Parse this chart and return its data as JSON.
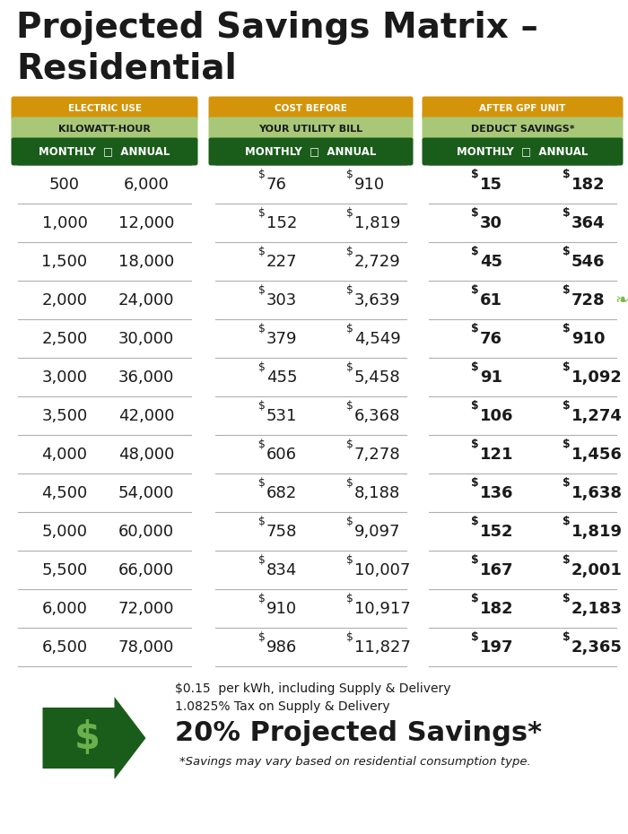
{
  "title_line1": "Projected Savings Matrix –",
  "title_line2": "Residential",
  "bg_color": "#ffffff",
  "dark_green": "#1a5c1a",
  "light_green_header": "#a8c878",
  "orange_header": "#d4940a",
  "text_dark": "#1a1a1a",
  "header_groups": [
    {
      "orange_label": "ELECTRIC USE",
      "light_label": "KILOWATT-HOUR",
      "dark_label": "MONTHLY  □  ANNUAL"
    },
    {
      "orange_label": "COST BEFORE",
      "light_label": "YOUR UTILITY BILL",
      "dark_label": "MONTHLY  □  ANNUAL"
    },
    {
      "orange_label": "AFTER GPF UNIT",
      "light_label": "DEDUCT SAVINGS*",
      "dark_label": "MONTHLY  □  ANNUAL"
    }
  ],
  "rows": [
    [
      "500",
      "6,000",
      "76",
      "910",
      "15",
      "182"
    ],
    [
      "1,000",
      "12,000",
      "152",
      "1,819",
      "30",
      "364"
    ],
    [
      "1,500",
      "18,000",
      "227",
      "2,729",
      "45",
      "546"
    ],
    [
      "2,000",
      "24,000",
      "303",
      "3,639",
      "61",
      "728"
    ],
    [
      "2,500",
      "30,000",
      "379",
      "4,549",
      "76",
      "910"
    ],
    [
      "3,000",
      "36,000",
      "455",
      "5,458",
      "91",
      "1,092"
    ],
    [
      "3,500",
      "42,000",
      "531",
      "6,368",
      "106",
      "1,274"
    ],
    [
      "4,000",
      "48,000",
      "606",
      "7,278",
      "121",
      "1,456"
    ],
    [
      "4,500",
      "54,000",
      "682",
      "8,188",
      "136",
      "1,638"
    ],
    [
      "5,000",
      "60,000",
      "758",
      "9,097",
      "152",
      "1,819"
    ],
    [
      "5,500",
      "66,000",
      "834",
      "10,007",
      "167",
      "2,001"
    ],
    [
      "6,000",
      "72,000",
      "910",
      "10,917",
      "182",
      "2,183"
    ],
    [
      "6,500",
      "78,000",
      "986",
      "11,827",
      "197",
      "2,365"
    ]
  ],
  "leaf_row": 3,
  "footer_line1": "$0.15  per kWh, including Supply & Delivery",
  "footer_line2": "1.0825% Tax on Supply & Delivery",
  "footer_bold": "20% Projected Savings*",
  "footer_italic": "*Savings may vary based on residential consumption type."
}
